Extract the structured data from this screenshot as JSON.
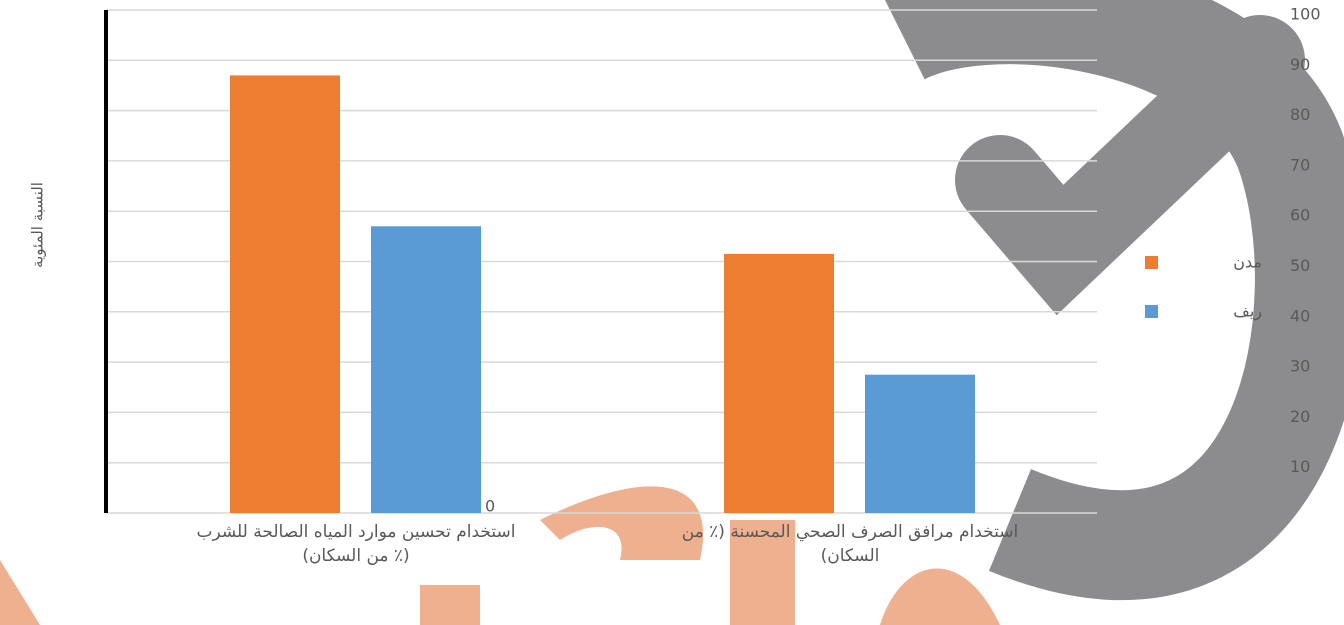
{
  "chart_data": {
    "type": "bar",
    "y_label": "النسبة المئوية",
    "categories": [
      "استخدام تحسين موارد المياه الصالحة للشرب (٪ من السكان)",
      "استخدام مرافق الصرف الصحي المحسنة (٪ من السكان)"
    ],
    "series": [
      {
        "name": "مدن",
        "color": "#ed7d31",
        "values": [
          87,
          51.5
        ]
      },
      {
        "name": "ريف",
        "color": "#5b9bd5",
        "values": [
          57,
          27.5
        ]
      }
    ],
    "ylim": [
      0,
      100
    ],
    "yticks": [
      0,
      10,
      20,
      30,
      40,
      50,
      60,
      70,
      80,
      90,
      100
    ],
    "grid": true
  }
}
